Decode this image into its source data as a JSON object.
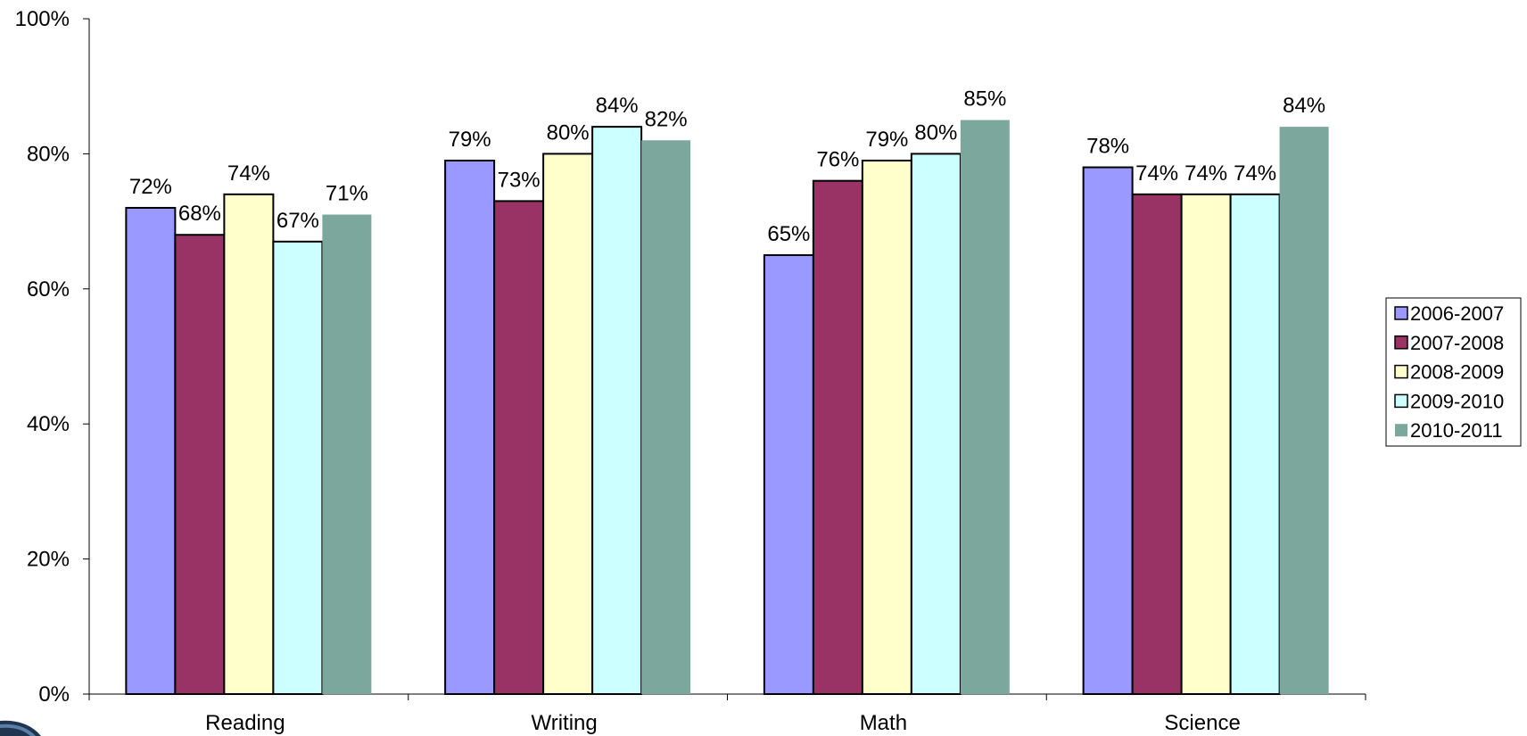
{
  "chart_data": {
    "type": "bar",
    "categories": [
      "Reading",
      "Writing",
      "Math",
      "Science"
    ],
    "series": [
      {
        "name": "2006-2007",
        "values": [
          72,
          79,
          65,
          78
        ],
        "labels": [
          "72%",
          "79%",
          "65%",
          "78%"
        ],
        "color": "#9999ff",
        "outlined": true
      },
      {
        "name": "2007-2008",
        "values": [
          68,
          73,
          76,
          74
        ],
        "labels": [
          "68%",
          "73%",
          "76%",
          "74%"
        ],
        "color": "#993366",
        "outlined": true
      },
      {
        "name": "2008-2009",
        "values": [
          74,
          80,
          79,
          74
        ],
        "labels": [
          "74%",
          "80%",
          "79%",
          "74%"
        ],
        "color": "#ffffcc",
        "outlined": true
      },
      {
        "name": "2009-2010",
        "values": [
          67,
          84,
          80,
          74
        ],
        "labels": [
          "67%",
          "84%",
          "80%",
          "74%"
        ],
        "color": "#ccffff",
        "outlined": true
      },
      {
        "name": "2010-2011",
        "values": [
          71,
          82,
          85,
          84
        ],
        "labels": [
          "71%",
          "82%",
          "85%",
          "84%"
        ],
        "color": "#7ba79d",
        "outlined": false
      }
    ],
    "y_ticks": [
      "0%",
      "20%",
      "40%",
      "60%",
      "80%",
      "100%"
    ],
    "ylim": [
      0,
      100
    ],
    "grid": false,
    "legend_position": "right",
    "title": "",
    "xlabel": "",
    "ylabel": ""
  }
}
